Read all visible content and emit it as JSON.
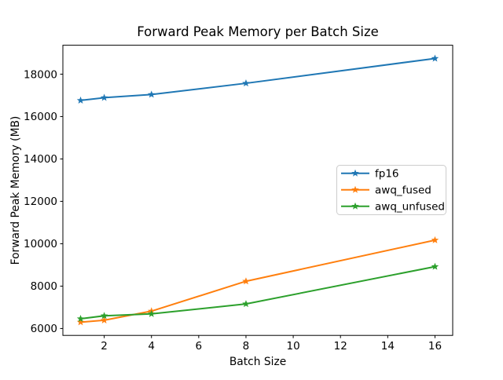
{
  "figure": {
    "background": "#ffffff",
    "text_color": "#000000"
  },
  "chart_data": {
    "type": "line",
    "title": "Forward Peak Memory per Batch Size",
    "xlabel": "Batch Size",
    "ylabel": "Forward Peak Memory (MB)",
    "x": [
      1,
      2,
      4,
      8,
      16
    ],
    "series": [
      {
        "name": "fp16",
        "color": "#1f77b4",
        "marker": "star",
        "values": [
          16760,
          16890,
          17040,
          17570,
          18740
        ]
      },
      {
        "name": "awq_fused",
        "color": "#ff7f0e",
        "marker": "star",
        "values": [
          6300,
          6390,
          6820,
          8230,
          10170
        ]
      },
      {
        "name": "awq_unfused",
        "color": "#2ca02c",
        "marker": "star",
        "values": [
          6460,
          6600,
          6690,
          7160,
          8920
        ]
      }
    ],
    "xticks": [
      2,
      4,
      6,
      8,
      10,
      12,
      14,
      16
    ],
    "yticks": [
      6000,
      8000,
      10000,
      12000,
      14000,
      16000,
      18000
    ],
    "xlim": [
      0.25,
      16.75
    ],
    "ylim": [
      5675,
      19365
    ],
    "grid": false,
    "legend": {
      "position": "center right",
      "border_color": "#cccccc",
      "background": "#ffffff",
      "entries": [
        "fp16",
        "awq_fused",
        "awq_unfused"
      ]
    }
  }
}
